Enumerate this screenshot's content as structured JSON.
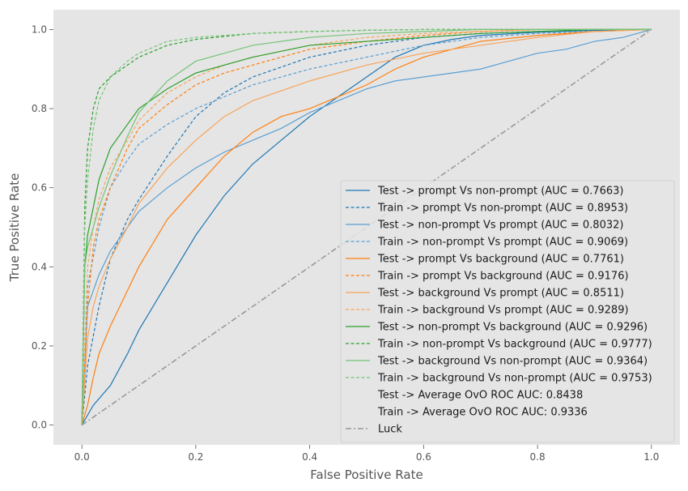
{
  "chart_data": {
    "type": "line",
    "title": "",
    "xlabel": "False Positive Rate",
    "ylabel": "True Positive Rate",
    "xlim": [
      -0.05,
      1.05
    ],
    "ylim": [
      -0.05,
      1.05
    ],
    "xticks": [
      "0.0",
      "0.2",
      "0.4",
      "0.6",
      "0.8",
      "1.0"
    ],
    "yticks": [
      "0.0",
      "0.2",
      "0.4",
      "0.6",
      "0.8",
      "1.0"
    ],
    "grid": false,
    "legend_position": "lower-right",
    "background": "#e5e5e5",
    "series": [
      {
        "name": "Test -> prompt Vs non-prompt (AUC = 0.7663)",
        "color": "#1f77b4",
        "dash": "solid",
        "x": [
          0,
          0.02,
          0.05,
          0.08,
          0.1,
          0.15,
          0.2,
          0.25,
          0.3,
          0.35,
          0.4,
          0.45,
          0.5,
          0.55,
          0.6,
          0.65,
          0.7,
          0.8,
          0.9,
          1.0
        ],
        "y": [
          0,
          0.05,
          0.1,
          0.18,
          0.24,
          0.36,
          0.48,
          0.58,
          0.66,
          0.72,
          0.78,
          0.83,
          0.88,
          0.93,
          0.96,
          0.975,
          0.985,
          0.993,
          0.998,
          1.0
        ]
      },
      {
        "name": "Train -> prompt Vs non-prompt (AUC = 0.8953)",
        "color": "#1f77b4",
        "dash": "dashed",
        "x": [
          0,
          0.01,
          0.03,
          0.05,
          0.08,
          0.1,
          0.15,
          0.2,
          0.25,
          0.3,
          0.4,
          0.5,
          0.6,
          0.7,
          0.8,
          0.9,
          1.0
        ],
        "y": [
          0,
          0.15,
          0.3,
          0.42,
          0.52,
          0.57,
          0.68,
          0.78,
          0.84,
          0.88,
          0.93,
          0.96,
          0.98,
          0.99,
          0.995,
          0.998,
          1.0
        ]
      },
      {
        "name": "Test -> non-prompt Vs prompt (AUC = 0.8032)",
        "color": "#5a9fd4",
        "dash": "solid",
        "x": [
          0,
          0.01,
          0.03,
          0.05,
          0.08,
          0.1,
          0.15,
          0.2,
          0.25,
          0.3,
          0.35,
          0.4,
          0.45,
          0.5,
          0.55,
          0.6,
          0.65,
          0.7,
          0.75,
          0.8,
          0.85,
          0.9,
          0.95,
          1.0
        ],
        "y": [
          0,
          0.3,
          0.38,
          0.44,
          0.5,
          0.54,
          0.6,
          0.65,
          0.69,
          0.72,
          0.75,
          0.79,
          0.82,
          0.85,
          0.87,
          0.88,
          0.89,
          0.9,
          0.92,
          0.94,
          0.95,
          0.97,
          0.98,
          1.0
        ]
      },
      {
        "name": "Train -> non-prompt Vs prompt (AUC = 0.9069)",
        "color": "#5a9fd4",
        "dash": "dashed",
        "x": [
          0,
          0.01,
          0.03,
          0.05,
          0.08,
          0.1,
          0.15,
          0.2,
          0.3,
          0.4,
          0.5,
          0.6,
          0.7,
          0.8,
          0.9,
          1.0
        ],
        "y": [
          0,
          0.35,
          0.5,
          0.6,
          0.67,
          0.71,
          0.76,
          0.8,
          0.86,
          0.9,
          0.93,
          0.96,
          0.98,
          0.99,
          0.995,
          1.0
        ]
      },
      {
        "name": "Test -> prompt Vs background (AUC = 0.7761)",
        "color": "#ff7f0e",
        "dash": "solid",
        "x": [
          0,
          0.01,
          0.02,
          0.03,
          0.05,
          0.08,
          0.1,
          0.15,
          0.2,
          0.25,
          0.3,
          0.35,
          0.4,
          0.45,
          0.5,
          0.55,
          0.6,
          0.65,
          0.7,
          0.8,
          0.9,
          1.0
        ],
        "y": [
          0,
          0.05,
          0.12,
          0.18,
          0.25,
          0.34,
          0.4,
          0.52,
          0.6,
          0.68,
          0.74,
          0.78,
          0.8,
          0.83,
          0.86,
          0.9,
          0.93,
          0.95,
          0.97,
          0.985,
          0.995,
          1.0
        ]
      },
      {
        "name": "Train -> prompt Vs background (AUC = 0.9176)",
        "color": "#ff7f0e",
        "dash": "dashed",
        "x": [
          0,
          0.01,
          0.02,
          0.03,
          0.05,
          0.08,
          0.1,
          0.15,
          0.2,
          0.25,
          0.3,
          0.4,
          0.5,
          0.6,
          0.7,
          0.8,
          0.9,
          1.0
        ],
        "y": [
          0,
          0.3,
          0.45,
          0.52,
          0.6,
          0.7,
          0.75,
          0.81,
          0.86,
          0.89,
          0.91,
          0.95,
          0.97,
          0.985,
          0.995,
          1.0,
          1.0,
          1.0
        ]
      },
      {
        "name": "Test -> background Vs prompt (AUC = 0.8511)",
        "color": "#f7a45a",
        "dash": "solid",
        "x": [
          0,
          0.01,
          0.02,
          0.03,
          0.05,
          0.08,
          0.1,
          0.15,
          0.2,
          0.25,
          0.3,
          0.4,
          0.5,
          0.6,
          0.7,
          0.8,
          0.9,
          1.0
        ],
        "y": [
          0,
          0.22,
          0.3,
          0.35,
          0.42,
          0.5,
          0.56,
          0.65,
          0.72,
          0.78,
          0.82,
          0.87,
          0.91,
          0.94,
          0.96,
          0.98,
          0.995,
          1.0
        ]
      },
      {
        "name": "Train -> background Vs prompt (AUC = 0.9289)",
        "color": "#f7a45a",
        "dash": "dashed",
        "x": [
          0,
          0.01,
          0.02,
          0.03,
          0.05,
          0.08,
          0.1,
          0.15,
          0.2,
          0.25,
          0.3,
          0.4,
          0.5,
          0.6,
          0.7,
          0.8,
          0.9,
          1.0
        ],
        "y": [
          0,
          0.4,
          0.5,
          0.57,
          0.65,
          0.72,
          0.77,
          0.84,
          0.88,
          0.91,
          0.93,
          0.96,
          0.98,
          0.99,
          0.995,
          1.0,
          1.0,
          1.0
        ]
      },
      {
        "name": "Test -> non-prompt Vs background (AUC = 0.9296)",
        "color": "#2ca02c",
        "dash": "solid",
        "x": [
          0,
          0.005,
          0.01,
          0.02,
          0.03,
          0.05,
          0.08,
          0.1,
          0.15,
          0.2,
          0.25,
          0.3,
          0.4,
          0.5,
          0.6,
          0.7,
          0.8,
          0.9,
          1.0
        ],
        "y": [
          0,
          0.4,
          0.48,
          0.55,
          0.62,
          0.7,
          0.76,
          0.8,
          0.85,
          0.89,
          0.91,
          0.93,
          0.96,
          0.97,
          0.98,
          0.99,
          0.995,
          1.0,
          1.0
        ]
      },
      {
        "name": "Train -> non-prompt Vs background (AUC = 0.9777)",
        "color": "#2ca02c",
        "dash": "dashed",
        "x": [
          0,
          0.005,
          0.01,
          0.02,
          0.03,
          0.05,
          0.08,
          0.1,
          0.15,
          0.2,
          0.3,
          0.4,
          0.5,
          0.6,
          0.8,
          1.0
        ],
        "y": [
          0,
          0.55,
          0.7,
          0.8,
          0.85,
          0.88,
          0.91,
          0.93,
          0.96,
          0.975,
          0.99,
          0.995,
          0.998,
          1.0,
          1.0,
          1.0
        ]
      },
      {
        "name": "Test -> background Vs non-prompt (AUC = 0.9364)",
        "color": "#74c476",
        "dash": "solid",
        "x": [
          0,
          0.005,
          0.01,
          0.02,
          0.03,
          0.05,
          0.08,
          0.1,
          0.15,
          0.2,
          0.25,
          0.3,
          0.4,
          0.5,
          0.6,
          0.7,
          0.8,
          1.0
        ],
        "y": [
          0,
          0.4,
          0.45,
          0.5,
          0.55,
          0.63,
          0.73,
          0.79,
          0.87,
          0.92,
          0.94,
          0.96,
          0.98,
          0.99,
          0.995,
          1.0,
          1.0,
          1.0
        ]
      },
      {
        "name": "Train -> background Vs non-prompt (AUC = 0.9753)",
        "color": "#74c476",
        "dash": "dashed",
        "x": [
          0,
          0.005,
          0.01,
          0.02,
          0.03,
          0.05,
          0.08,
          0.1,
          0.15,
          0.2,
          0.3,
          0.4,
          0.5,
          0.6,
          0.8,
          1.0
        ],
        "y": [
          0,
          0.5,
          0.62,
          0.75,
          0.82,
          0.88,
          0.92,
          0.94,
          0.97,
          0.98,
          0.99,
          0.995,
          0.998,
          1.0,
          1.0,
          1.0
        ]
      },
      {
        "name": "Luck",
        "color": "#999999",
        "dash": "dashdot",
        "x": [
          0,
          1
        ],
        "y": [
          0,
          1
        ]
      }
    ],
    "legend_entries": [
      {
        "label": "Test -> prompt Vs non-prompt (AUC = 0.7663)",
        "color": "#1f77b4",
        "dash": "solid"
      },
      {
        "label": "Train -> prompt Vs non-prompt (AUC = 0.8953)",
        "color": "#1f77b4",
        "dash": "dashed"
      },
      {
        "label": "Test -> non-prompt Vs prompt (AUC = 0.8032)",
        "color": "#5a9fd4",
        "dash": "solid"
      },
      {
        "label": "Train -> non-prompt Vs prompt (AUC = 0.9069)",
        "color": "#5a9fd4",
        "dash": "dashed"
      },
      {
        "label": "Test -> prompt Vs background (AUC = 0.7761)",
        "color": "#ff7f0e",
        "dash": "solid"
      },
      {
        "label": "Train -> prompt Vs background (AUC = 0.9176)",
        "color": "#ff7f0e",
        "dash": "dashed"
      },
      {
        "label": "Test -> background Vs prompt (AUC = 0.8511)",
        "color": "#f7a45a",
        "dash": "solid"
      },
      {
        "label": "Train -> background Vs prompt (AUC = 0.9289)",
        "color": "#f7a45a",
        "dash": "dashed"
      },
      {
        "label": "Test -> non-prompt Vs background (AUC = 0.9296)",
        "color": "#2ca02c",
        "dash": "solid"
      },
      {
        "label": "Train -> non-prompt Vs background (AUC = 0.9777)",
        "color": "#2ca02c",
        "dash": "dashed"
      },
      {
        "label": "Test -> background Vs non-prompt (AUC = 0.9364)",
        "color": "#74c476",
        "dash": "solid"
      },
      {
        "label": "Train -> background Vs non-prompt (AUC = 0.9753)",
        "color": "#74c476",
        "dash": "dashed"
      },
      {
        "label": "Test -> Average OvO ROC AUC: 0.8438",
        "color": "",
        "dash": "none"
      },
      {
        "label": "Train -> Average OvO ROC AUC: 0.9336",
        "color": "",
        "dash": "none"
      },
      {
        "label": "Luck",
        "color": "#999999",
        "dash": "dashdot"
      }
    ]
  }
}
